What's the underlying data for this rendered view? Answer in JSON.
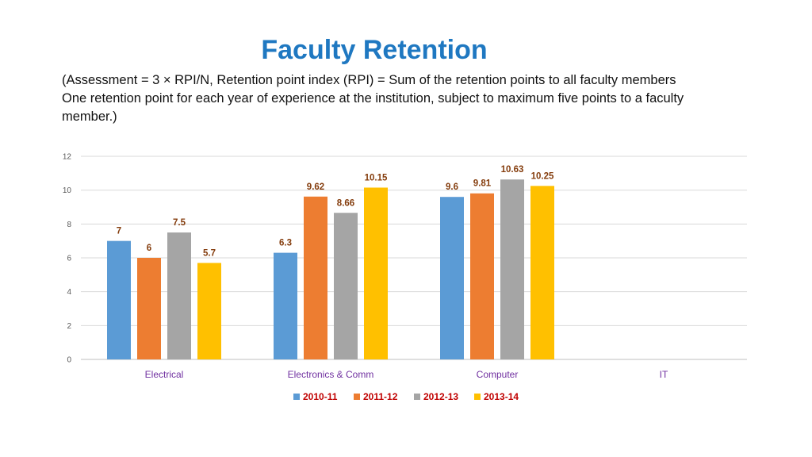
{
  "slide": {
    "title": "Faculty Retention",
    "subtitle_lines": [
      "(Assessment = 3 × RPI/N, Retention point index (RPI) = Sum of the retention points to all faculty members",
      "One retention point for each year of experience at the institution, subject to maximum five points to a faculty",
      "member.)"
    ]
  },
  "chart_data": {
    "type": "bar",
    "categories": [
      "Electrical",
      "Electronics & Comm",
      "Computer",
      "IT"
    ],
    "series": [
      {
        "name": "2010-11",
        "values": [
          7,
          6.3,
          9.6,
          null
        ],
        "color": "#5b9bd5"
      },
      {
        "name": "2011-12",
        "values": [
          6,
          9.62,
          9.81,
          null
        ],
        "color": "#ed7d31"
      },
      {
        "name": "2012-13",
        "values": [
          7.5,
          8.66,
          10.63,
          null
        ],
        "color": "#a5a5a5"
      },
      {
        "name": "2013-14",
        "values": [
          5.7,
          10.15,
          10.25,
          null
        ],
        "color": "#ffc000"
      }
    ],
    "ylim": [
      0,
      12
    ],
    "yticks": [
      0,
      2,
      4,
      6,
      8,
      10,
      12
    ],
    "grid": true,
    "legend": "bottom",
    "colors": {
      "category_label": "#7030a0",
      "data_label": "#843c0c",
      "legend_label": "#c00000",
      "gridline": "#d9d9d9"
    }
  }
}
